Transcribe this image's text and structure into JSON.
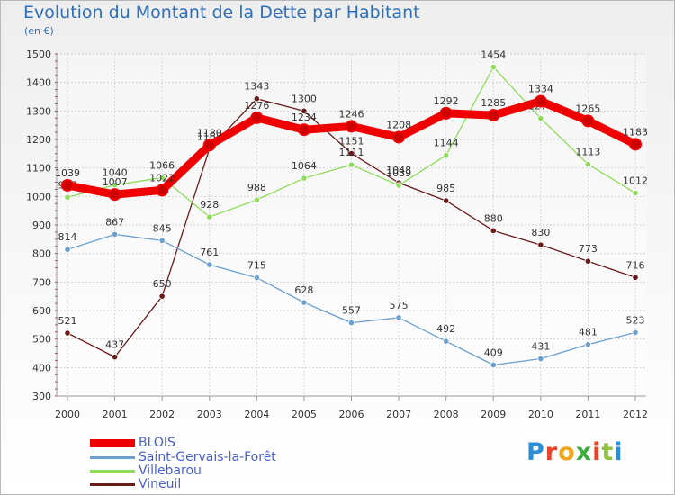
{
  "header": {
    "title": "Evolution du Montant de la Dette par Habitant",
    "subtitle": "(en €)"
  },
  "logo": {
    "text": "Proxiti",
    "letter_colors": [
      "#2c8fd6",
      "#e8432a",
      "#f2a51a",
      "#3cae3c",
      "#e8432a",
      "#8fc23a",
      "#2c8fd6"
    ]
  },
  "chart_data": {
    "type": "line",
    "title": "Evolution du Montant de la Dette par Habitant",
    "subtitle": "(en €)",
    "xlabel": "",
    "ylabel": "",
    "x": [
      "2000",
      "2001",
      "2002",
      "2003",
      "2004",
      "2005",
      "2006",
      "2007",
      "2008",
      "2009",
      "2010",
      "2011",
      "2012"
    ],
    "ylim": [
      300,
      1500
    ],
    "yticks": [
      300,
      400,
      500,
      600,
      700,
      800,
      900,
      1000,
      1100,
      1200,
      1300,
      1400,
      1500
    ],
    "grid": true,
    "legend_position": "bottom-left",
    "series": [
      {
        "name": "Vineuil",
        "color": "#6b1a1a",
        "values": [
          521,
          437,
          650,
          1167,
          1343,
          1300,
          1151,
          1048,
          985,
          880,
          830,
          773,
          716
        ],
        "labels": [
          "521",
          "437",
          "650",
          "1167",
          "1343",
          "1300",
          "1151",
          "1048",
          "985",
          "880",
          "830",
          "773",
          "716"
        ]
      },
      {
        "name": "Villebarou",
        "color": "#8fdc5a",
        "values": [
          997,
          1040,
          1066,
          928,
          988,
          1064,
          1111,
          1039,
          1144,
          1454,
          1274,
          1113,
          1012
        ],
        "labels": [
          "997",
          "1040",
          "1066",
          "928",
          "988",
          "1064",
          "1111",
          "1039",
          "1144",
          "1454",
          "1274",
          "1113",
          "1012"
        ]
      },
      {
        "name": "Saint-Gervais-la-Forêt",
        "color": "#6a9fd0",
        "values": [
          814,
          867,
          845,
          761,
          715,
          628,
          557,
          575,
          492,
          409,
          431,
          481,
          523
        ],
        "labels": [
          "814",
          "867",
          "845",
          "761",
          "715",
          "628",
          "557",
          "575",
          "492",
          "409",
          "431",
          "481",
          "523"
        ]
      },
      {
        "name": "BLOIS",
        "color": "#ee0000",
        "values": [
          1039,
          1007,
          1022,
          1180,
          1276,
          1234,
          1246,
          1208,
          1292,
          1285,
          1334,
          1265,
          1183
        ],
        "labels": [
          "1039",
          "1007",
          "1022",
          "1180",
          "1276",
          "1234",
          "1246",
          "1208",
          "1292",
          "1285",
          "1334",
          "1265",
          "1183"
        ]
      }
    ],
    "legend": [
      "BLOIS",
      "Saint-Gervais-la-Forêt",
      "Villebarou",
      "Vineuil"
    ]
  }
}
